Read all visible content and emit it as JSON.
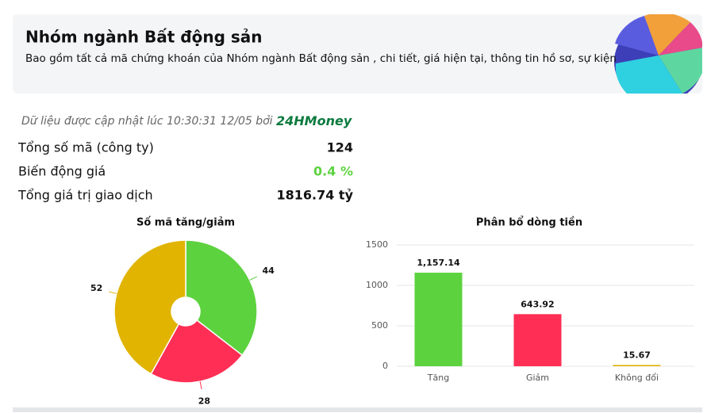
{
  "header": {
    "title": "Nhóm ngành Bất động sản",
    "description": "Bao gồm tất cả mã chứng khoán của Nhóm ngành Bất động sản , chi tiết, giá hiện tại, thông tin hồ sơ, sự kiện"
  },
  "update_note": {
    "text": "Dữ liệu được cập nhật lúc 10:30:31 12/05 bởi",
    "source": "24HMoney"
  },
  "stats": [
    {
      "label": "Tổng số mã (công ty)",
      "value": "124"
    },
    {
      "label": "Biến động giá",
      "value": "0.4 %"
    },
    {
      "label": "Tổng giá trị giao dịch",
      "value": "1816.74 tỷ"
    }
  ],
  "chart_data": [
    {
      "type": "pie",
      "title": "Số mã tăng/giảm",
      "values": [
        44,
        28,
        52
      ],
      "colors": [
        "#5dd23f",
        "#ff2e55",
        "#e0b400"
      ]
    },
    {
      "type": "bar",
      "title": "Phân bổ dòng tiền",
      "categories": [
        "Tăng",
        "Giảm",
        "Không đổi"
      ],
      "values": [
        1157.14,
        643.92,
        15.67
      ],
      "value_labels": [
        "1,157.14",
        "643.92",
        "15.67"
      ],
      "colors": [
        "#5dd23f",
        "#ff2e55",
        "#e0b400"
      ],
      "ylim": [
        0,
        1500
      ],
      "yticks": [
        0,
        500,
        1000,
        1500
      ],
      "grid": true
    }
  ]
}
